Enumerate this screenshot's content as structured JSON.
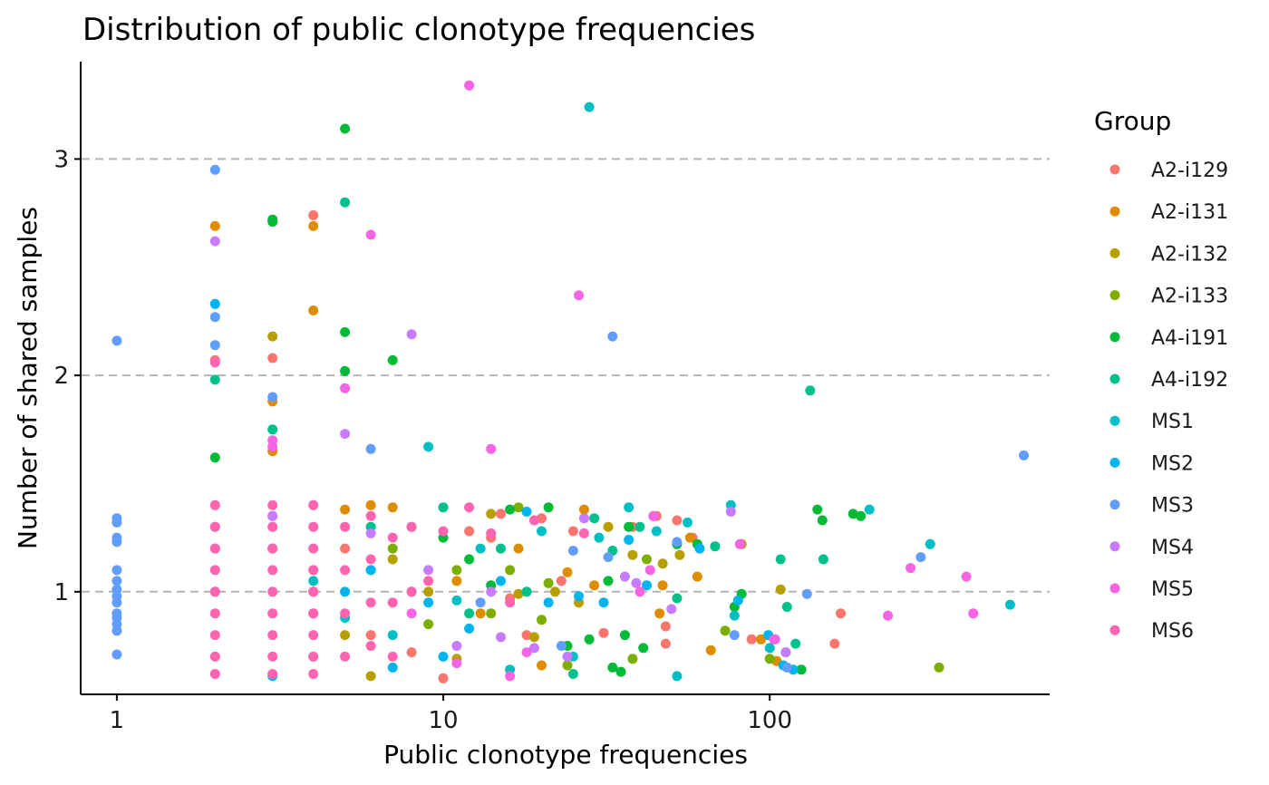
{
  "chart_data": {
    "type": "scatter",
    "title": "Distribution of public clonotype frequencies",
    "xlabel": "Public clonotype frequencies",
    "ylabel": "Number of shared samples",
    "x_scale": "log10",
    "xlim": [
      0.78,
      720
    ],
    "ylim": [
      0.53,
      3.45
    ],
    "x_ticks": [
      {
        "value": 1,
        "label": "1"
      },
      {
        "value": 10,
        "label": "10"
      },
      {
        "value": 100,
        "label": "100"
      }
    ],
    "y_ticks": [
      {
        "value": 1,
        "label": "1"
      },
      {
        "value": 2,
        "label": "2"
      },
      {
        "value": 3,
        "label": "3"
      }
    ],
    "grid": "horizontal dashed at y ticks",
    "legend_title": "Group",
    "legend_position": "right",
    "series": [
      {
        "name": "A2-i129",
        "color": "#F8766D",
        "points": [
          [
            2,
            2.07
          ],
          [
            3,
            2.08
          ],
          [
            4,
            2.74
          ],
          [
            3,
            1.35
          ],
          [
            4,
            1.1
          ],
          [
            5,
            1.2
          ],
          [
            6,
            0.8
          ],
          [
            8,
            0.72
          ],
          [
            10,
            0.6
          ],
          [
            12,
            1.28
          ],
          [
            14,
            1.25
          ],
          [
            15,
            1.36
          ],
          [
            16,
            0.97
          ],
          [
            18,
            0.8
          ],
          [
            20,
            1.34
          ],
          [
            23,
            1.05
          ],
          [
            25,
            1.28
          ],
          [
            31,
            0.81
          ],
          [
            38,
            1.3
          ],
          [
            45,
            1.35
          ],
          [
            48,
            0.84
          ],
          [
            48,
            0.76
          ],
          [
            52,
            1.33
          ],
          [
            58,
            1.25
          ],
          [
            88,
            0.78
          ],
          [
            165,
            0.9
          ],
          [
            158,
            0.76
          ]
        ]
      },
      {
        "name": "A2-i131",
        "color": "#DE8C00",
        "points": [
          [
            2,
            2.69
          ],
          [
            3,
            1.88
          ],
          [
            3,
            1.65
          ],
          [
            4,
            2.69
          ],
          [
            4,
            2.3
          ],
          [
            5,
            1.38
          ],
          [
            6,
            1.4
          ],
          [
            7,
            1.39
          ],
          [
            11,
            1.05
          ],
          [
            13,
            0.9
          ],
          [
            17,
            1.2
          ],
          [
            20,
            0.66
          ],
          [
            24,
            1.09
          ],
          [
            27,
            1.38
          ],
          [
            29,
            1.03
          ],
          [
            46,
            0.9
          ],
          [
            47,
            1.03
          ],
          [
            57,
            1.25
          ],
          [
            60,
            1.07
          ],
          [
            66,
            0.73
          ],
          [
            94,
            0.78
          ],
          [
            105,
            0.68
          ]
        ]
      },
      {
        "name": "A2-i132",
        "color": "#B79F00",
        "points": [
          [
            3,
            2.18
          ],
          [
            3,
            1.2
          ],
          [
            4,
            1.0
          ],
          [
            5,
            0.8
          ],
          [
            6,
            0.61
          ],
          [
            7,
            1.15
          ],
          [
            9,
            1.0
          ],
          [
            11,
            0.69
          ],
          [
            14,
            1.36
          ],
          [
            17,
            0.99
          ],
          [
            19,
            0.79
          ],
          [
            22,
            1.0
          ],
          [
            26,
            0.95
          ],
          [
            32,
            1.3
          ],
          [
            38,
            1.17
          ],
          [
            47,
            1.13
          ],
          [
            53,
            1.17
          ],
          [
            82,
            1.22
          ],
          [
            108,
            1.01
          ]
        ]
      },
      {
        "name": "A2-i133",
        "color": "#7CAE00",
        "points": [
          [
            7,
            1.2
          ],
          [
            9,
            0.85
          ],
          [
            11,
            1.1
          ],
          [
            14,
            0.9
          ],
          [
            16,
            1.1
          ],
          [
            17,
            1.39
          ],
          [
            20,
            0.87
          ],
          [
            21,
            1.04
          ],
          [
            24,
            0.66
          ],
          [
            38,
            0.69
          ],
          [
            42,
            1.15
          ],
          [
            73,
            0.82
          ],
          [
            100,
            0.69
          ],
          [
            330,
            0.65
          ]
        ]
      },
      {
        "name": "A4-i191",
        "color": "#00BA38",
        "points": [
          [
            2,
            1.62
          ],
          [
            3,
            2.72
          ],
          [
            3,
            2.71
          ],
          [
            5,
            3.14
          ],
          [
            5,
            2.2
          ],
          [
            5,
            2.02
          ],
          [
            7,
            2.07
          ],
          [
            8,
            1.3
          ],
          [
            10,
            1.25
          ],
          [
            12,
            1.15
          ],
          [
            14,
            1.03
          ],
          [
            16,
            1.38
          ],
          [
            21,
            1.39
          ],
          [
            24,
            0.75
          ],
          [
            28,
            0.78
          ],
          [
            32,
            1.05
          ],
          [
            36,
            0.8
          ],
          [
            37,
            1.3
          ],
          [
            41,
            0.74
          ],
          [
            52,
            1.22
          ],
          [
            60,
            1.22
          ],
          [
            78,
            0.93
          ],
          [
            82,
            0.99
          ],
          [
            125,
            0.64
          ],
          [
            140,
            1.38
          ],
          [
            145,
            1.33
          ],
          [
            180,
            1.36
          ],
          [
            190,
            1.35
          ],
          [
            35,
            0.63
          ],
          [
            33,
            0.65
          ]
        ]
      },
      {
        "name": "A4-i192",
        "color": "#00C08B",
        "points": [
          [
            2,
            1.98
          ],
          [
            3,
            1.75
          ],
          [
            5,
            2.8
          ],
          [
            6,
            1.3
          ],
          [
            8,
            1.0
          ],
          [
            10,
            1.39
          ],
          [
            12,
            0.9
          ],
          [
            15,
            1.2
          ],
          [
            18,
            1.0
          ],
          [
            25,
            0.62
          ],
          [
            29,
            1.34
          ],
          [
            33,
            1.19
          ],
          [
            40,
            1.3
          ],
          [
            52,
            0.97
          ],
          [
            68,
            1.21
          ],
          [
            108,
            1.15
          ],
          [
            113,
            0.93
          ],
          [
            120,
            0.76
          ],
          [
            133,
            1.93
          ],
          [
            146,
            1.15
          ]
        ]
      },
      {
        "name": "MS1",
        "color": "#00BFC4",
        "points": [
          [
            2,
            1.3
          ],
          [
            3,
            1.2
          ],
          [
            4,
            1.05
          ],
          [
            5,
            0.88
          ],
          [
            6,
            1.1
          ],
          [
            7,
            0.8
          ],
          [
            9,
            1.67
          ],
          [
            11,
            0.96
          ],
          [
            13,
            1.2
          ],
          [
            16,
            0.64
          ],
          [
            20,
            1.28
          ],
          [
            25,
            0.7
          ],
          [
            28,
            3.24
          ],
          [
            30,
            1.25
          ],
          [
            37,
            1.39
          ],
          [
            45,
            1.28
          ],
          [
            52,
            0.61
          ],
          [
            56,
            1.32
          ],
          [
            76,
            1.4
          ],
          [
            78,
            0.89
          ],
          [
            100,
            0.74
          ],
          [
            112,
            0.72
          ],
          [
            202,
            1.38
          ],
          [
            310,
            1.22
          ],
          [
            545,
            0.94
          ]
        ]
      },
      {
        "name": "MS2",
        "color": "#00B4F0",
        "points": [
          [
            2,
            2.33
          ],
          [
            2,
            1.0
          ],
          [
            3,
            0.61
          ],
          [
            4,
            0.7
          ],
          [
            5,
            1.0
          ],
          [
            6,
            1.1
          ],
          [
            7,
            0.65
          ],
          [
            9,
            0.95
          ],
          [
            10,
            0.7
          ],
          [
            12,
            0.83
          ],
          [
            15,
            1.05
          ],
          [
            18,
            1.37
          ],
          [
            21,
            0.95
          ],
          [
            26,
            0.98
          ],
          [
            31,
            0.95
          ],
          [
            37,
            1.24
          ],
          [
            42,
            1.03
          ],
          [
            61,
            1.2
          ],
          [
            80,
            0.96
          ],
          [
            99,
            0.8
          ],
          [
            110,
            0.66
          ],
          [
            118,
            0.64
          ]
        ]
      },
      {
        "name": "MS3",
        "color": "#619CFF",
        "points": [
          [
            1,
            2.16
          ],
          [
            1,
            1.34
          ],
          [
            1,
            1.32
          ],
          [
            1,
            1.25
          ],
          [
            1,
            1.23
          ],
          [
            1,
            1.1
          ],
          [
            1,
            1.05
          ],
          [
            1,
            1.01
          ],
          [
            1,
            0.98
          ],
          [
            1,
            0.95
          ],
          [
            1,
            0.9
          ],
          [
            1,
            0.88
          ],
          [
            1,
            0.85
          ],
          [
            1,
            0.82
          ],
          [
            1,
            0.71
          ],
          [
            2,
            2.95
          ],
          [
            2,
            2.27
          ],
          [
            2,
            2.14
          ],
          [
            3,
            1.9
          ],
          [
            6,
            1.66
          ],
          [
            13,
            0.95
          ],
          [
            23,
            0.75
          ],
          [
            25,
            1.19
          ],
          [
            32,
            1.16
          ],
          [
            33,
            2.18
          ],
          [
            52,
            1.23
          ],
          [
            78,
            0.8
          ],
          [
            113,
            0.65
          ],
          [
            130,
            0.99
          ],
          [
            290,
            1.16
          ],
          [
            600,
            1.63
          ]
        ]
      },
      {
        "name": "MS4",
        "color": "#C77CFF",
        "points": [
          [
            2,
            2.62
          ],
          [
            3,
            1.35
          ],
          [
            4,
            0.9
          ],
          [
            5,
            1.73
          ],
          [
            6,
            1.27
          ],
          [
            8,
            2.19
          ],
          [
            9,
            1.1
          ],
          [
            11,
            0.75
          ],
          [
            14,
            1.0
          ],
          [
            15,
            0.79
          ],
          [
            19,
            0.74
          ],
          [
            24,
            0.7
          ],
          [
            27,
            1.34
          ],
          [
            36,
            1.07
          ],
          [
            39,
            1.04
          ],
          [
            50,
            0.92
          ],
          [
            76,
            1.37
          ],
          [
            104,
            0.78
          ],
          [
            112,
            0.72
          ]
        ]
      },
      {
        "name": "MS5",
        "color": "#F564E3",
        "points": [
          [
            2,
            1.2
          ],
          [
            3,
            1.7
          ],
          [
            3,
            1.67
          ],
          [
            4,
            1.0
          ],
          [
            5,
            1.94
          ],
          [
            6,
            2.65
          ],
          [
            8,
            0.9
          ],
          [
            11,
            0.67
          ],
          [
            12,
            3.34
          ],
          [
            14,
            1.66
          ],
          [
            16,
            0.61
          ],
          [
            18,
            0.72
          ],
          [
            26,
            2.37
          ],
          [
            40,
            1.0
          ],
          [
            43,
            1.1
          ],
          [
            44,
            1.35
          ],
          [
            81,
            1.22
          ],
          [
            103,
            0.78
          ],
          [
            230,
            0.89
          ],
          [
            270,
            1.11
          ],
          [
            400,
            1.07
          ],
          [
            420,
            0.9
          ]
        ]
      },
      {
        "name": "MS6",
        "color": "#FF64B0",
        "points": [
          [
            2,
            2.06
          ],
          [
            2,
            1.4
          ],
          [
            2,
            1.3
          ],
          [
            2,
            1.2
          ],
          [
            2,
            1.1
          ],
          [
            2,
            1.0
          ],
          [
            2,
            0.9
          ],
          [
            2,
            0.8
          ],
          [
            2,
            0.7
          ],
          [
            2,
            0.62
          ],
          [
            3,
            1.4
          ],
          [
            3,
            1.3
          ],
          [
            3,
            1.2
          ],
          [
            3,
            1.1
          ],
          [
            3,
            1.0
          ],
          [
            3,
            0.9
          ],
          [
            3,
            0.8
          ],
          [
            3,
            0.7
          ],
          [
            3,
            0.62
          ],
          [
            4,
            1.4
          ],
          [
            4,
            1.3
          ],
          [
            4,
            1.2
          ],
          [
            4,
            1.1
          ],
          [
            4,
            1.0
          ],
          [
            4,
            0.9
          ],
          [
            4,
            0.8
          ],
          [
            4,
            0.7
          ],
          [
            4,
            0.62
          ],
          [
            5,
            1.3
          ],
          [
            5,
            1.1
          ],
          [
            5,
            0.9
          ],
          [
            5,
            0.7
          ],
          [
            6,
            1.35
          ],
          [
            6,
            1.15
          ],
          [
            6,
            0.95
          ],
          [
            6,
            0.75
          ],
          [
            7,
            1.25
          ],
          [
            7,
            0.95
          ],
          [
            7,
            0.7
          ],
          [
            8,
            1.3
          ],
          [
            8,
            1.0
          ],
          [
            9,
            1.05
          ],
          [
            10,
            1.28
          ],
          [
            12,
            1.39
          ],
          [
            14,
            1.27
          ],
          [
            16,
            0.95
          ],
          [
            19,
            1.33
          ],
          [
            27,
            1.27
          ]
        ]
      }
    ]
  }
}
